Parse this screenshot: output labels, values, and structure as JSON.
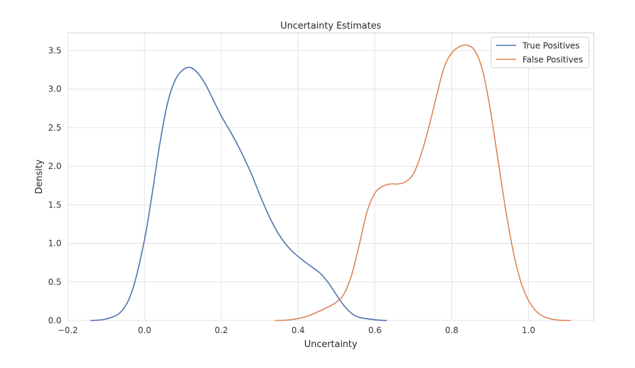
{
  "chart_data": {
    "type": "line",
    "title": "Uncertainty Estimates",
    "xlabel": "Uncertainty",
    "ylabel": "Density",
    "xlim": [
      -0.2,
      1.17
    ],
    "ylim": [
      0,
      3.73
    ],
    "xticks": [
      -0.2,
      0.0,
      0.2,
      0.4,
      0.6,
      0.8,
      1.0
    ],
    "xtick_labels": [
      "−0.2",
      "0.0",
      "0.2",
      "0.4",
      "0.6",
      "0.8",
      "1.0"
    ],
    "yticks": [
      0.0,
      0.5,
      1.0,
      1.5,
      2.0,
      2.5,
      3.0,
      3.5
    ],
    "ytick_labels": [
      "0.0",
      "0.5",
      "1.0",
      "1.5",
      "2.0",
      "2.5",
      "3.0",
      "3.5"
    ],
    "grid": true,
    "legend_position": "top-right",
    "series": [
      {
        "name": "True Positives",
        "color": "#4c72b0",
        "points": [
          [
            -0.14,
            0.0
          ],
          [
            -0.1,
            0.02
          ],
          [
            -0.06,
            0.12
          ],
          [
            -0.03,
            0.42
          ],
          [
            0.0,
            1.05
          ],
          [
            0.02,
            1.65
          ],
          [
            0.04,
            2.3
          ],
          [
            0.06,
            2.82
          ],
          [
            0.08,
            3.12
          ],
          [
            0.1,
            3.25
          ],
          [
            0.12,
            3.28
          ],
          [
            0.14,
            3.2
          ],
          [
            0.16,
            3.05
          ],
          [
            0.18,
            2.85
          ],
          [
            0.2,
            2.65
          ],
          [
            0.22,
            2.48
          ],
          [
            0.24,
            2.3
          ],
          [
            0.26,
            2.1
          ],
          [
            0.28,
            1.88
          ],
          [
            0.3,
            1.63
          ],
          [
            0.32,
            1.4
          ],
          [
            0.34,
            1.2
          ],
          [
            0.36,
            1.04
          ],
          [
            0.38,
            0.92
          ],
          [
            0.4,
            0.83
          ],
          [
            0.42,
            0.75
          ],
          [
            0.44,
            0.68
          ],
          [
            0.46,
            0.6
          ],
          [
            0.48,
            0.48
          ],
          [
            0.5,
            0.33
          ],
          [
            0.52,
            0.19
          ],
          [
            0.54,
            0.09
          ],
          [
            0.56,
            0.04
          ],
          [
            0.6,
            0.01
          ],
          [
            0.63,
            0.0
          ]
        ]
      },
      {
        "name": "False Positives",
        "color": "#dd8452",
        "points": [
          [
            0.34,
            0.0
          ],
          [
            0.38,
            0.01
          ],
          [
            0.42,
            0.05
          ],
          [
            0.45,
            0.11
          ],
          [
            0.48,
            0.18
          ],
          [
            0.5,
            0.24
          ],
          [
            0.52,
            0.35
          ],
          [
            0.54,
            0.6
          ],
          [
            0.56,
            1.0
          ],
          [
            0.58,
            1.42
          ],
          [
            0.6,
            1.65
          ],
          [
            0.62,
            1.74
          ],
          [
            0.64,
            1.77
          ],
          [
            0.66,
            1.77
          ],
          [
            0.68,
            1.8
          ],
          [
            0.7,
            1.9
          ],
          [
            0.72,
            2.15
          ],
          [
            0.74,
            2.5
          ],
          [
            0.76,
            2.9
          ],
          [
            0.78,
            3.28
          ],
          [
            0.8,
            3.47
          ],
          [
            0.82,
            3.55
          ],
          [
            0.84,
            3.57
          ],
          [
            0.86,
            3.5
          ],
          [
            0.88,
            3.25
          ],
          [
            0.9,
            2.75
          ],
          [
            0.92,
            2.1
          ],
          [
            0.94,
            1.45
          ],
          [
            0.96,
            0.9
          ],
          [
            0.98,
            0.5
          ],
          [
            1.0,
            0.26
          ],
          [
            1.02,
            0.12
          ],
          [
            1.04,
            0.05
          ],
          [
            1.07,
            0.01
          ],
          [
            1.11,
            0.0
          ]
        ]
      }
    ]
  }
}
